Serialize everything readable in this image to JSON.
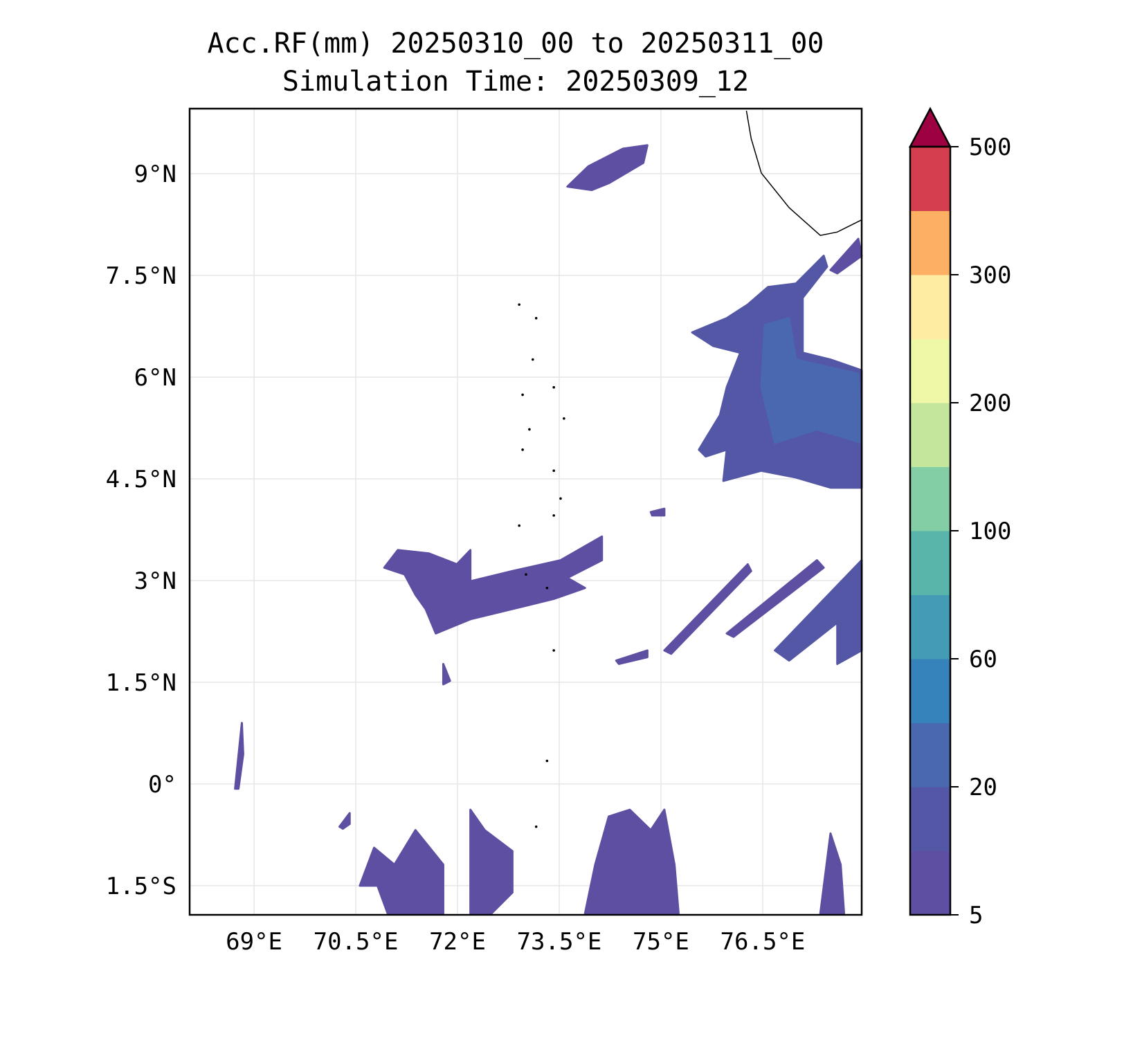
{
  "chart_data": {
    "type": "heatmap",
    "title": "Acc.RF(mm) 20250310_00 to 20250311_00",
    "subtitle": "Simulation Time: 20250309_12",
    "xlabel": "",
    "ylabel": "",
    "xlim": [
      68.05,
      77.96
    ],
    "ylim": [
      -1.93,
      9.96
    ],
    "grid": true,
    "xticks": [
      69,
      70.5,
      72,
      73.5,
      75,
      76.5
    ],
    "xtick_labels": [
      "69°E",
      "70.5°E",
      "72°E",
      "73.5°E",
      "75°E",
      "76.5°E"
    ],
    "yticks": [
      9,
      7.5,
      6,
      4.5,
      3,
      1.5,
      0,
      -1.5
    ],
    "ytick_labels": [
      "9°N",
      "7.5°N",
      "6°N",
      "4.5°N",
      "3°N",
      "1.5°N",
      "0°",
      "1.5°S"
    ],
    "colorbar": {
      "levels": [
        5,
        10,
        20,
        40,
        60,
        80,
        100,
        150,
        200,
        250,
        300,
        400,
        500
      ],
      "colors": [
        "#5e4fa2",
        "#5357a5",
        "#4a68ae",
        "#3682ba",
        "#439bb5",
        "#59b4aa",
        "#84cea5",
        "#c4e69c",
        "#eff8a6",
        "#feeca2",
        "#fdb063",
        "#d53e4f"
      ],
      "extend_color": "#9e0142",
      "ticks": [
        5,
        20,
        60,
        100,
        200,
        300,
        500
      ],
      "tick_labels": [
        "5",
        "20",
        "60",
        "100",
        "200",
        "300",
        "500"
      ],
      "extend": "max"
    },
    "rain_regions": [
      {
        "level": 1,
        "lonlat": [
          [
            73.62,
            8.81
          ],
          [
            73.93,
            9.11
          ],
          [
            74.44,
            9.37
          ],
          [
            74.8,
            9.42
          ],
          [
            74.74,
            9.16
          ],
          [
            74.23,
            8.86
          ],
          [
            73.98,
            8.76
          ]
        ]
      },
      {
        "level": 2,
        "lonlat": [
          [
            75.46,
            6.66
          ],
          [
            75.97,
            6.87
          ],
          [
            76.28,
            7.07
          ],
          [
            76.58,
            7.33
          ],
          [
            76.99,
            7.38
          ],
          [
            77.4,
            7.79
          ],
          [
            77.45,
            7.63
          ],
          [
            77.09,
            7.17
          ],
          [
            77.09,
            6.36
          ],
          [
            77.5,
            6.26
          ],
          [
            77.96,
            6.1
          ],
          [
            77.96,
            4.37
          ],
          [
            77.5,
            4.37
          ],
          [
            76.99,
            4.52
          ],
          [
            76.48,
            4.62
          ],
          [
            75.92,
            4.47
          ],
          [
            75.97,
            4.93
          ],
          [
            75.66,
            4.83
          ],
          [
            75.56,
            4.93
          ],
          [
            75.87,
            5.44
          ],
          [
            75.97,
            5.85
          ],
          [
            76.17,
            6.36
          ],
          [
            75.77,
            6.46
          ]
        ]
      },
      {
        "level": 3,
        "lonlat": [
          [
            76.53,
            6.77
          ],
          [
            76.89,
            6.87
          ],
          [
            76.99,
            6.26
          ],
          [
            77.91,
            6.05
          ],
          [
            77.96,
            5.03
          ],
          [
            77.3,
            5.23
          ],
          [
            76.68,
            5.03
          ],
          [
            76.48,
            5.85
          ]
        ]
      },
      {
        "level": 1,
        "lonlat": [
          [
            77.5,
            7.58
          ],
          [
            77.91,
            8.04
          ],
          [
            77.96,
            7.79
          ],
          [
            77.6,
            7.53
          ]
        ]
      },
      {
        "level": 1,
        "lonlat": [
          [
            70.92,
            3.19
          ],
          [
            71.12,
            3.45
          ],
          [
            71.58,
            3.4
          ],
          [
            71.99,
            3.24
          ],
          [
            72.19,
            3.45
          ],
          [
            72.19,
            2.99
          ],
          [
            72.81,
            3.14
          ],
          [
            73.52,
            3.3
          ],
          [
            74.13,
            3.65
          ],
          [
            74.13,
            3.3
          ],
          [
            73.62,
            3.04
          ],
          [
            73.88,
            2.89
          ],
          [
            73.42,
            2.73
          ],
          [
            72.81,
            2.58
          ],
          [
            72.19,
            2.43
          ],
          [
            71.68,
            2.22
          ],
          [
            71.53,
            2.58
          ],
          [
            71.38,
            2.79
          ],
          [
            71.22,
            3.09
          ]
        ]
      },
      {
        "level": 1,
        "lonlat": [
          [
            75.05,
            1.97
          ],
          [
            76.28,
            3.24
          ],
          [
            76.33,
            3.14
          ],
          [
            75.15,
            1.92
          ]
        ]
      },
      {
        "level": 1,
        "lonlat": [
          [
            75.97,
            2.22
          ],
          [
            77.3,
            3.3
          ],
          [
            77.4,
            3.19
          ],
          [
            76.07,
            2.17
          ]
        ]
      },
      {
        "level": 2,
        "lonlat": [
          [
            76.68,
            1.97
          ],
          [
            77.96,
            3.3
          ],
          [
            77.96,
            1.97
          ],
          [
            77.6,
            1.77
          ],
          [
            77.6,
            2.38
          ],
          [
            76.89,
            1.82
          ]
        ]
      },
      {
        "level": 1,
        "lonlat": [
          [
            74.34,
            1.82
          ],
          [
            74.8,
            1.97
          ],
          [
            74.8,
            1.87
          ],
          [
            74.38,
            1.77
          ]
        ]
      },
      {
        "level": 1,
        "lonlat": [
          [
            74.85,
            4.01
          ],
          [
            75.05,
            4.06
          ],
          [
            75.05,
            3.96
          ],
          [
            74.87,
            3.96
          ]
        ]
      },
      {
        "level": 1,
        "lonlat": [
          [
            73.88,
            -1.91
          ],
          [
            74.03,
            -1.19
          ],
          [
            74.23,
            -0.48
          ],
          [
            74.54,
            -0.38
          ],
          [
            74.85,
            -0.68
          ],
          [
            75.05,
            -0.38
          ],
          [
            75.2,
            -1.19
          ],
          [
            75.26,
            -1.91
          ]
        ]
      },
      {
        "level": 1,
        "lonlat": [
          [
            70.56,
            -1.5
          ],
          [
            70.77,
            -0.94
          ],
          [
            71.07,
            -1.19
          ],
          [
            71.38,
            -0.68
          ],
          [
            71.79,
            -1.19
          ],
          [
            71.79,
            -1.91
          ],
          [
            70.97,
            -1.91
          ],
          [
            70.82,
            -1.5
          ]
        ]
      },
      {
        "level": 1,
        "lonlat": [
          [
            72.19,
            -1.91
          ],
          [
            72.19,
            -0.38
          ],
          [
            72.4,
            -0.68
          ],
          [
            72.81,
            -0.99
          ],
          [
            72.81,
            -1.6
          ],
          [
            72.5,
            -1.91
          ]
        ]
      },
      {
        "level": 1,
        "lonlat": [
          [
            77.35,
            -1.91
          ],
          [
            77.5,
            -0.73
          ],
          [
            77.65,
            -1.19
          ],
          [
            77.7,
            -1.91
          ]
        ]
      },
      {
        "level": 1,
        "lonlat": [
          [
            68.72,
            -0.07
          ],
          [
            68.82,
            0.9
          ],
          [
            68.84,
            0.44
          ],
          [
            68.77,
            -0.07
          ]
        ]
      },
      {
        "level": 1,
        "lonlat": [
          [
            70.26,
            -0.63
          ],
          [
            70.41,
            -0.43
          ],
          [
            70.41,
            -0.59
          ],
          [
            70.31,
            -0.66
          ]
        ]
      },
      {
        "level": 1,
        "lonlat": [
          [
            71.79,
            1.77
          ],
          [
            71.89,
            1.52
          ],
          [
            71.79,
            1.47
          ]
        ]
      }
    ],
    "coastline": [
      [
        76.26,
        9.93
      ],
      [
        76.33,
        9.52
      ],
      [
        76.48,
        9.01
      ],
      [
        76.89,
        8.5
      ],
      [
        77.35,
        8.09
      ],
      [
        77.6,
        8.14
      ],
      [
        77.96,
        8.32
      ]
    ],
    "islands": [
      [
        72.91,
        7.07
      ],
      [
        73.16,
        6.87
      ],
      [
        73.11,
        6.26
      ],
      [
        72.96,
        5.74
      ],
      [
        73.42,
        5.85
      ],
      [
        73.57,
        5.39
      ],
      [
        73.06,
        5.23
      ],
      [
        72.96,
        4.93
      ],
      [
        73.42,
        4.62
      ],
      [
        73.52,
        4.21
      ],
      [
        73.42,
        3.96
      ],
      [
        72.91,
        3.81
      ],
      [
        73.01,
        3.09
      ],
      [
        73.32,
        2.89
      ],
      [
        73.42,
        1.97
      ],
      [
        73.32,
        0.34
      ],
      [
        73.16,
        -0.63
      ]
    ]
  }
}
